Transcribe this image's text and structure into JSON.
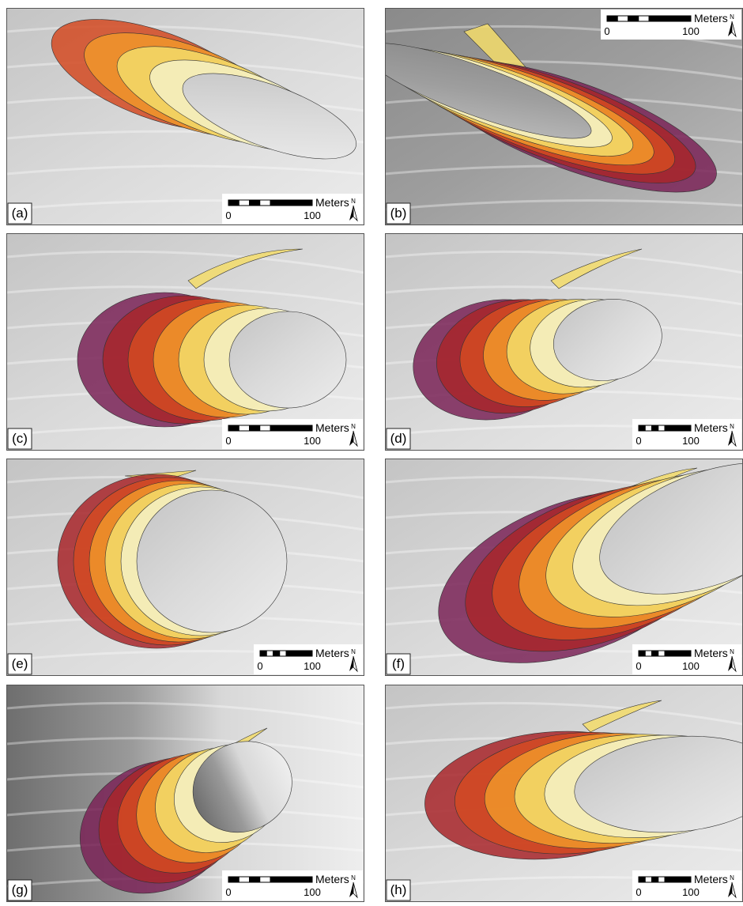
{
  "panels": [
    {
      "label": "(a)",
      "scale_bar": {
        "unit": "Meters",
        "start": 0,
        "end": 100
      },
      "north": "N"
    },
    {
      "label": "(b)",
      "scale_bar": {
        "unit": "Meters",
        "start": 0,
        "end": 100
      },
      "north": "N"
    },
    {
      "label": "(c)",
      "scale_bar": {
        "unit": "Meters",
        "start": 0,
        "end": 100
      },
      "north": "N"
    },
    {
      "label": "(d)",
      "scale_bar": {
        "unit": "Meters",
        "start": 0,
        "end": 100
      },
      "north": "N"
    },
    {
      "label": "(e)",
      "scale_bar": {
        "unit": "Meters",
        "start": 0,
        "end": 100
      },
      "north": "N"
    },
    {
      "label": "(f)",
      "scale_bar": {
        "unit": "Meters",
        "start": 0,
        "end": 100
      },
      "north": "N"
    },
    {
      "label": "(g)",
      "scale_bar": {
        "unit": "Meters",
        "start": 0,
        "end": 100
      },
      "north": "N"
    },
    {
      "label": "(h)",
      "scale_bar": {
        "unit": "Meters",
        "start": 0,
        "end": 100
      },
      "north": "N"
    }
  ]
}
